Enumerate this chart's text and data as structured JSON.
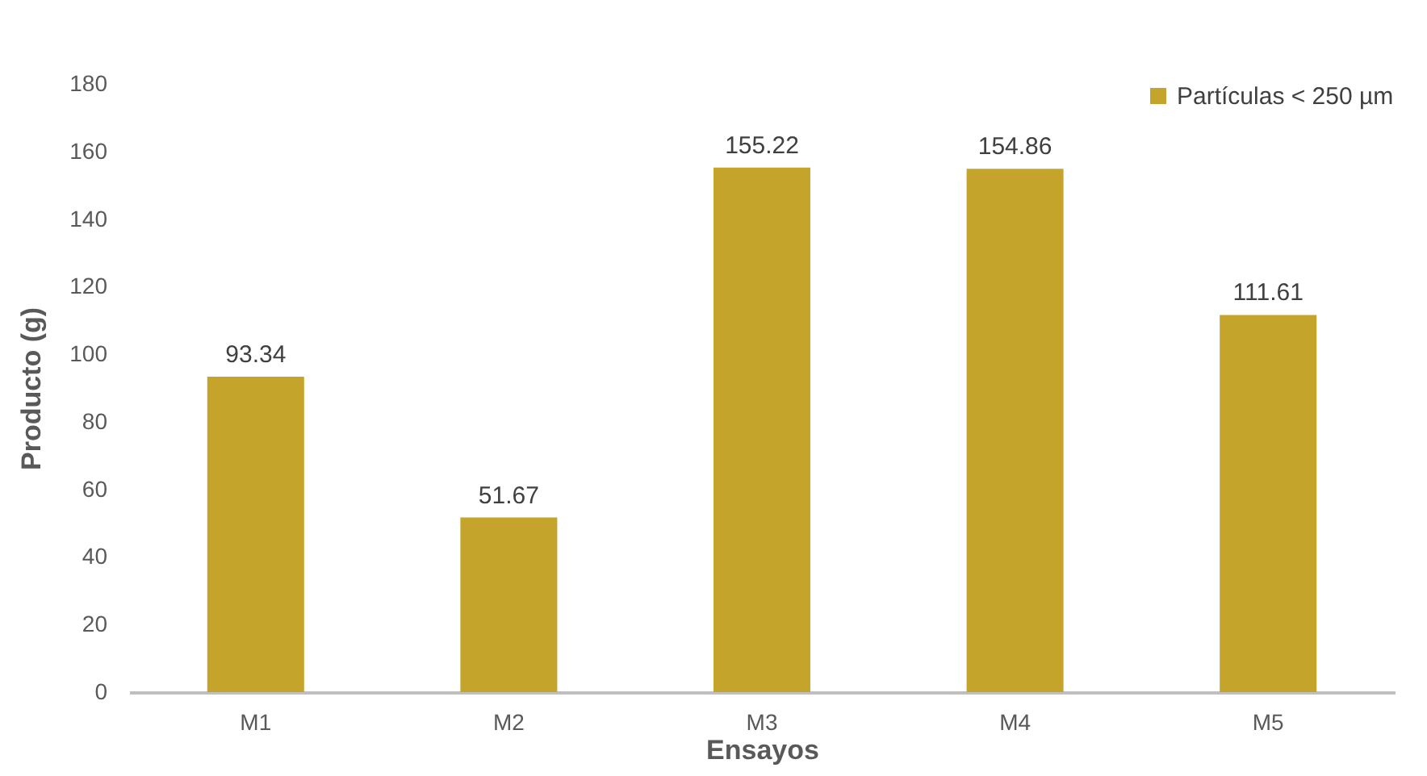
{
  "chart_data": {
    "type": "bar",
    "xlabel": "Ensayos",
    "ylabel": "Producto (g)",
    "categories": [
      "M1",
      "M2",
      "M3",
      "M4",
      "M5"
    ],
    "series": [
      {
        "name": "Partículas < 250 µm",
        "color": "#c4a42a",
        "values": [
          93.34,
          51.67,
          155.22,
          154.86,
          111.61
        ]
      }
    ],
    "ylim": [
      0,
      180
    ],
    "yticks": [
      0,
      20,
      40,
      60,
      80,
      100,
      120,
      140,
      160,
      180
    ],
    "data_labels": true,
    "legend": "top right",
    "grid": false
  }
}
